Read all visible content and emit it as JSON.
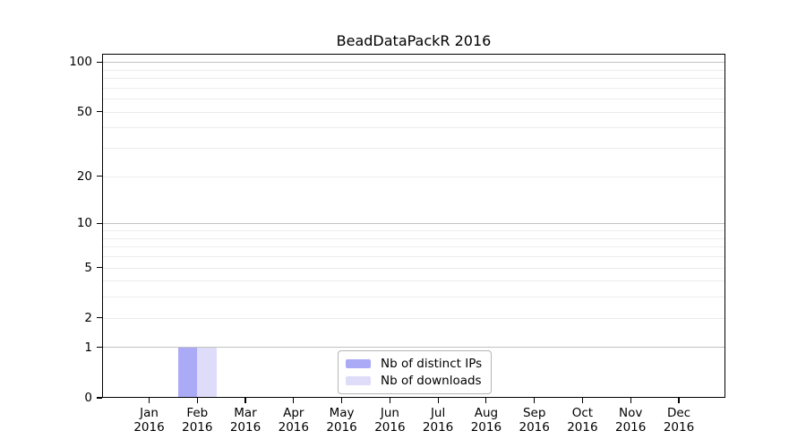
{
  "chart_data": {
    "type": "bar",
    "title": "BeadDataPackR 2016",
    "months": [
      "Jan",
      "Feb",
      "Mar",
      "Apr",
      "May",
      "Jun",
      "Jul",
      "Aug",
      "Sep",
      "Oct",
      "Nov",
      "Dec"
    ],
    "year_label": "2016",
    "y_ticks": [
      0,
      1,
      2,
      5,
      10,
      20,
      50,
      100
    ],
    "y_scale": "log10(1+value)",
    "y_axis_max": 112,
    "grid": {
      "major_values": [
        1,
        10,
        100
      ],
      "minor_values": [
        2,
        3,
        4,
        5,
        6,
        7,
        8,
        9,
        20,
        30,
        40,
        50,
        60,
        70,
        80,
        90
      ]
    },
    "series": [
      {
        "name": "Nb of distinct IPs",
        "color": "#aaaaf7",
        "values": [
          0,
          1,
          0,
          0,
          0,
          0,
          0,
          0,
          0,
          0,
          0,
          0
        ]
      },
      {
        "name": "Nb of downloads",
        "color": "#dedcf8",
        "values": [
          0,
          1,
          0,
          0,
          0,
          0,
          0,
          0,
          0,
          0,
          0,
          0
        ]
      }
    ],
    "legend": {
      "position": "lower-center-inside"
    }
  },
  "colors": {
    "axis": "#000000",
    "grid_major": "#c2c2c2",
    "grid_minor": "#ececec",
    "text": "#000000",
    "legend_border": "#b5b5b5",
    "legend_background": "#ffffff"
  }
}
